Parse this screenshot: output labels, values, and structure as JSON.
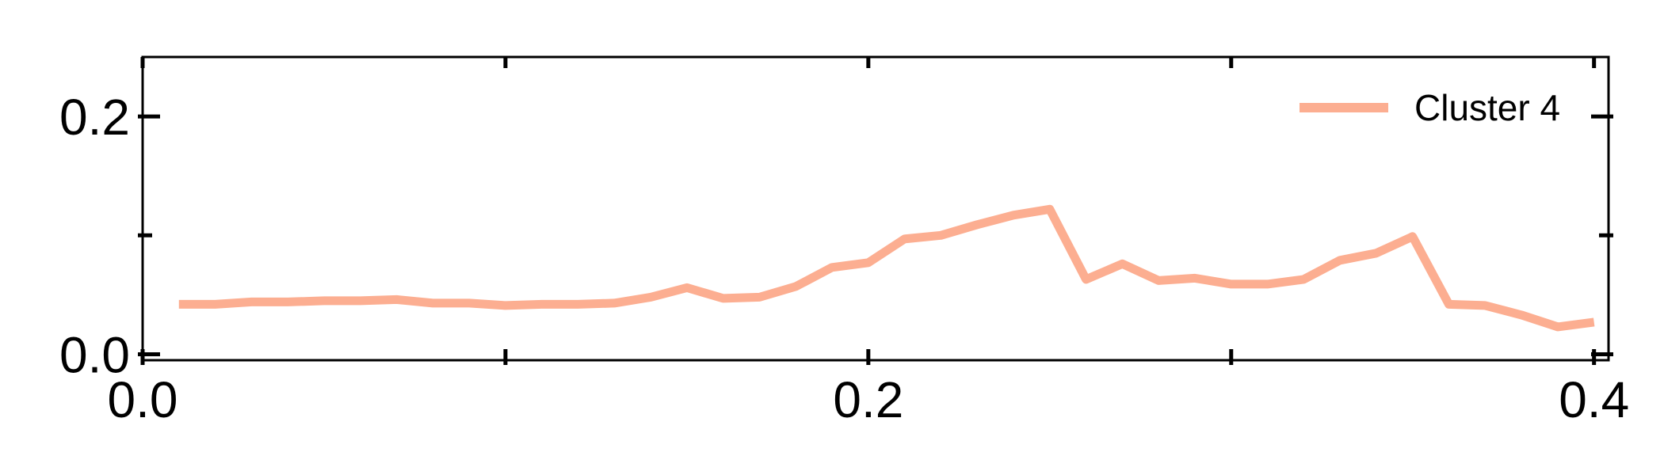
{
  "chart_data": {
    "type": "line",
    "title": "",
    "xlabel": "",
    "ylabel": "",
    "xlim": [
      0.0,
      0.404
    ],
    "ylim": [
      -0.005,
      0.25
    ],
    "x_ticks": [
      0.0,
      0.2,
      0.4
    ],
    "x_tick_labels": [
      "0.0",
      "0.2",
      "0.4"
    ],
    "x_minor_ticks": [
      0.1,
      0.3
    ],
    "y_ticks": [
      0.0,
      0.2
    ],
    "y_tick_labels": [
      "0.0",
      "0.2"
    ],
    "y_minor_ticks": [
      0.1
    ],
    "grid": false,
    "legend_position": "top-right",
    "series": [
      {
        "name": "Cluster 4",
        "color": "#fcae91",
        "x": [
          0.01,
          0.02,
          0.03,
          0.04,
          0.05,
          0.06,
          0.07,
          0.08,
          0.09,
          0.1,
          0.11,
          0.12,
          0.13,
          0.14,
          0.15,
          0.16,
          0.17,
          0.18,
          0.19,
          0.2,
          0.21,
          0.22,
          0.23,
          0.24,
          0.25,
          0.26,
          0.27,
          0.28,
          0.29,
          0.3,
          0.31,
          0.32,
          0.33,
          0.34,
          0.35,
          0.36,
          0.37,
          0.38,
          0.39,
          0.4
        ],
        "values": [
          0.042,
          0.042,
          0.044,
          0.044,
          0.045,
          0.045,
          0.046,
          0.043,
          0.043,
          0.041,
          0.042,
          0.042,
          0.043,
          0.048,
          0.056,
          0.047,
          0.048,
          0.057,
          0.073,
          0.077,
          0.097,
          0.1,
          0.109,
          0.117,
          0.122,
          0.063,
          0.076,
          0.062,
          0.064,
          0.059,
          0.059,
          0.063,
          0.079,
          0.085,
          0.099,
          0.042,
          0.041,
          0.033,
          0.023,
          0.027
        ]
      }
    ]
  }
}
